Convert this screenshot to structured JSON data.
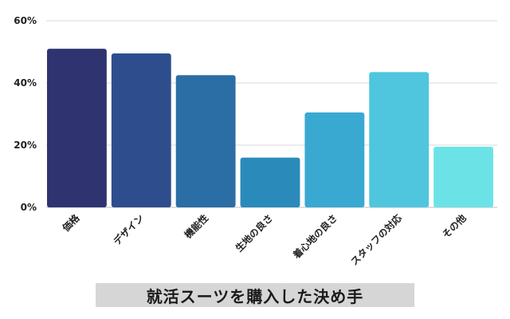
{
  "chart_data": {
    "type": "bar",
    "title": "就活スーツを購入した決め手",
    "categories": [
      "価格",
      "デザイン",
      "機能性",
      "生地の良さ",
      "着心地の良さ",
      "スタッフの対応",
      "その他"
    ],
    "values": [
      51,
      49.5,
      42.5,
      16,
      30.5,
      43.5,
      19.5
    ],
    "unit": "%",
    "ylim": [
      0,
      60
    ],
    "yticks": [
      0,
      20,
      40,
      60
    ],
    "ytick_labels": [
      "0%",
      "20%",
      "40%",
      "60%"
    ],
    "grid": true,
    "colors": [
      "#2f3470",
      "#2e4d8c",
      "#2b6ea5",
      "#2a8bbb",
      "#39a9d2",
      "#4fc6de",
      "#6be3e6"
    ]
  }
}
